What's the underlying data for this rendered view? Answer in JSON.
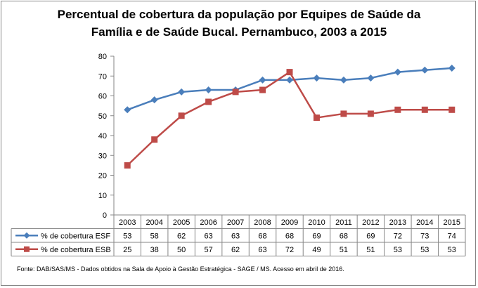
{
  "chart_data": {
    "type": "line",
    "title_line1": "Percentual de cobertura da população por Equipes de Saúde da",
    "title_line2": "Família e de Saúde Bucal. Pernambuco, 2003 a 2015",
    "categories": [
      "2003",
      "2004",
      "2005",
      "2006",
      "2007",
      "2008",
      "2009",
      "2010",
      "2011",
      "2012",
      "2013",
      "2014",
      "2015"
    ],
    "series": [
      {
        "name": "% de cobertura ESF",
        "color": "#4a7ebb",
        "marker": "diamond",
        "values": [
          53,
          58,
          62,
          63,
          63,
          68,
          68,
          69,
          68,
          69,
          72,
          73,
          74
        ]
      },
      {
        "name": "% de cobertura ESB",
        "color": "#be4b48",
        "marker": "square",
        "values": [
          25,
          38,
          50,
          57,
          62,
          63,
          72,
          49,
          51,
          51,
          53,
          53,
          53
        ]
      }
    ],
    "ylim": [
      0,
      80
    ],
    "yticks": [
      0,
      10,
      20,
      30,
      40,
      50,
      60,
      70,
      80
    ],
    "grid": false,
    "legend": "data-table"
  },
  "source_note": "Fonte:  DAB/SAS/MS - Dados obtidos na Sala de Apoio à Gestão Estratégica - SAGE / MS. Acesso em abril de 2016."
}
